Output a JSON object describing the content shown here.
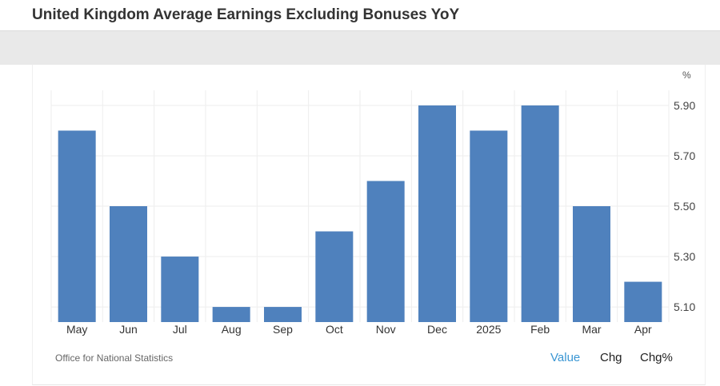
{
  "header": {
    "title": "United Kingdom Average Earnings Excluding Bonuses YoY"
  },
  "footer": {
    "source": "Office for National Statistics",
    "buttons": [
      {
        "label": "Value",
        "active": true
      },
      {
        "label": "Chg",
        "active": false
      },
      {
        "label": "Chg%",
        "active": false
      }
    ]
  },
  "colors": {
    "bar": "#4f81bd",
    "active_button": "#3a96d3",
    "grid": "#eeeeee"
  },
  "chart_data": {
    "type": "bar",
    "unit": "%",
    "categories": [
      "May",
      "Jun",
      "Jul",
      "Aug",
      "Sep",
      "Oct",
      "Nov",
      "Dec",
      "2025",
      "Feb",
      "Mar",
      "Apr"
    ],
    "values": [
      5.8,
      5.5,
      5.3,
      5.1,
      5.1,
      5.4,
      5.6,
      5.9,
      5.8,
      5.9,
      5.5,
      5.2
    ],
    "y_ticks": [
      "5.10",
      "5.30",
      "5.50",
      "5.70",
      "5.90"
    ],
    "ylim": [
      5.04,
      5.96
    ],
    "y_axis_side": "right",
    "grid": true
  }
}
